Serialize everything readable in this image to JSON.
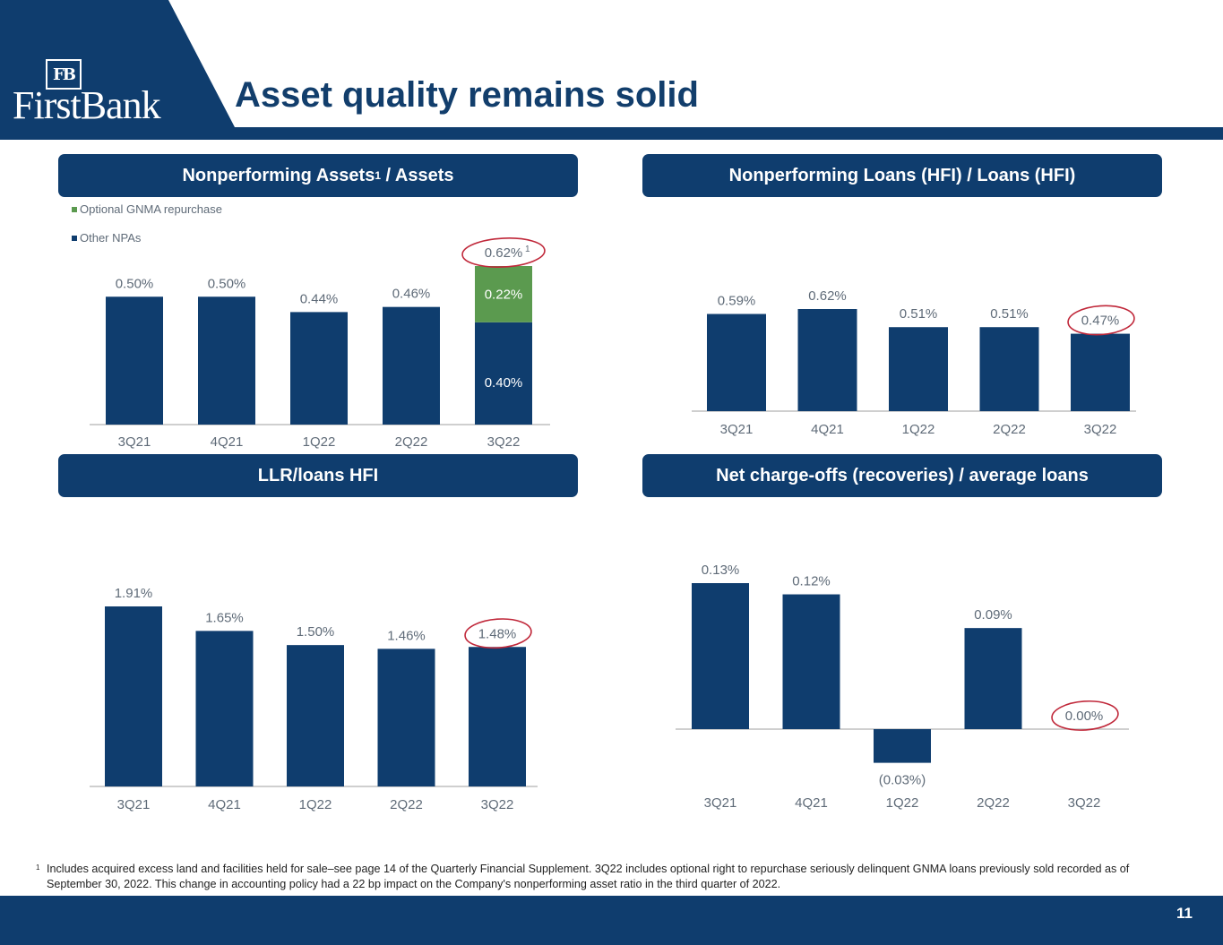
{
  "brand": {
    "name": "FirstBank",
    "monogram": "FB",
    "colors": {
      "navy": "#0f3d6e",
      "green": "#5b9a4f",
      "circle": "#c0283a",
      "axis": "#bfbfbf",
      "label": "#5f6b78"
    }
  },
  "slide": {
    "title": "Asset quality remains solid",
    "page_number": "11"
  },
  "panels": {
    "npa": {
      "title": "Nonperforming Assets",
      "title_sup": "1",
      "title_suffix": " / Assets"
    },
    "npl": {
      "title": "Nonperforming Loans (HFI) / Loans (HFI)"
    },
    "llr": {
      "title": "LLR/loans HFI"
    },
    "nco": {
      "title": "Net charge-offs (recoveries) / average loans"
    }
  },
  "footnote": {
    "marker": "1",
    "text": "Includes acquired excess land and facilities held for sale–see page 14 of the Quarterly Financial Supplement. 3Q22 includes optional right to repurchase seriously delinquent GNMA loans previously sold recorded as of September 30, 2022. This change in accounting policy had a 22 bp impact on the Company's nonperforming asset ratio in the third quarter of 2022."
  },
  "chart_data": [
    {
      "id": "npa",
      "type": "bar",
      "stacked": true,
      "title": "Nonperforming Assets1 / Assets",
      "categories": [
        "3Q21",
        "4Q21",
        "1Q22",
        "2Q22",
        "3Q22"
      ],
      "series": [
        {
          "name": "Other NPAs",
          "values": [
            0.5,
            0.5,
            0.44,
            0.46,
            0.4
          ],
          "color": "#0f3d6e"
        },
        {
          "name": "Optional GNMA repurchase",
          "values": [
            0,
            0,
            0,
            0,
            0.22
          ],
          "color": "#5b9a4f"
        }
      ],
      "total_labels": [
        "0.50%",
        "0.50%",
        "0.44%",
        "0.46%",
        "0.62%"
      ],
      "total_label_superscripts": [
        "",
        "",
        "",
        "",
        "1"
      ],
      "segment_labels": {
        "Other NPAs": [
          "",
          "",
          "",
          "",
          "0.40%"
        ],
        "Optional GNMA repurchase": [
          "",
          "",
          "",
          "",
          "0.22%"
        ]
      },
      "legend": [
        "Optional GNMA repurchase",
        "Other NPAs"
      ],
      "legend_position": "top-left",
      "highlight_index": 4,
      "ylim": [
        0,
        0.7
      ]
    },
    {
      "id": "npl",
      "type": "bar",
      "title": "Nonperforming Loans (HFI) / Loans (HFI)",
      "categories": [
        "3Q21",
        "4Q21",
        "1Q22",
        "2Q22",
        "3Q22"
      ],
      "values": [
        0.59,
        0.62,
        0.51,
        0.51,
        0.47
      ],
      "labels": [
        "0.59%",
        "0.62%",
        "0.51%",
        "0.51%",
        "0.47%"
      ],
      "highlight_index": 4,
      "ylim": [
        0,
        0.7
      ]
    },
    {
      "id": "llr",
      "type": "bar",
      "title": "LLR/loans HFI",
      "categories": [
        "3Q21",
        "4Q21",
        "1Q22",
        "2Q22",
        "3Q22"
      ],
      "values": [
        1.91,
        1.65,
        1.5,
        1.46,
        1.48
      ],
      "labels": [
        "1.91%",
        "1.65%",
        "1.50%",
        "1.46%",
        "1.48%"
      ],
      "highlight_index": 4,
      "ylim": [
        0,
        2.2
      ]
    },
    {
      "id": "nco",
      "type": "bar",
      "title": "Net charge-offs (recoveries) / average loans",
      "categories": [
        "3Q21",
        "4Q21",
        "1Q22",
        "2Q22",
        "3Q22"
      ],
      "values": [
        0.13,
        0.12,
        -0.03,
        0.09,
        0.0
      ],
      "labels": [
        "0.13%",
        "0.12%",
        "(0.03%)",
        "0.09%",
        "0.00%"
      ],
      "highlight_index": 4,
      "ylim": [
        -0.05,
        0.15
      ]
    }
  ]
}
